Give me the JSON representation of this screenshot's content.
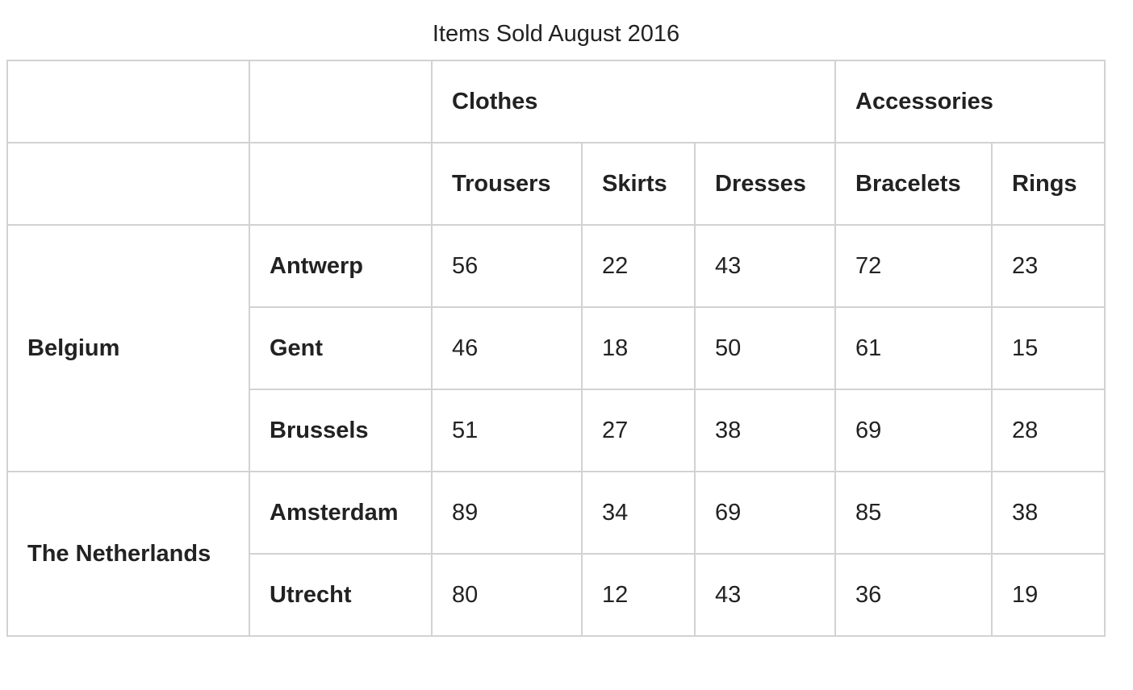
{
  "caption": "Items Sold August 2016",
  "groups": [
    "Clothes",
    "Accessories"
  ],
  "columns": [
    "Trousers",
    "Skirts",
    "Dresses",
    "Bracelets",
    "Rings"
  ],
  "countries": [
    {
      "name": "Belgium",
      "cities": [
        {
          "name": "Antwerp",
          "values": [
            "56",
            "22",
            "43",
            "72",
            "23"
          ]
        },
        {
          "name": "Gent",
          "values": [
            "46",
            "18",
            "50",
            "61",
            "15"
          ]
        },
        {
          "name": "Brussels",
          "values": [
            "51",
            "27",
            "38",
            "69",
            "28"
          ]
        }
      ]
    },
    {
      "name": "The Netherlands",
      "cities": [
        {
          "name": "Amsterdam",
          "values": [
            "89",
            "34",
            "69",
            "85",
            "38"
          ]
        },
        {
          "name": "Utrecht",
          "values": [
            "80",
            "12",
            "43",
            "36",
            "19"
          ]
        }
      ]
    }
  ]
}
